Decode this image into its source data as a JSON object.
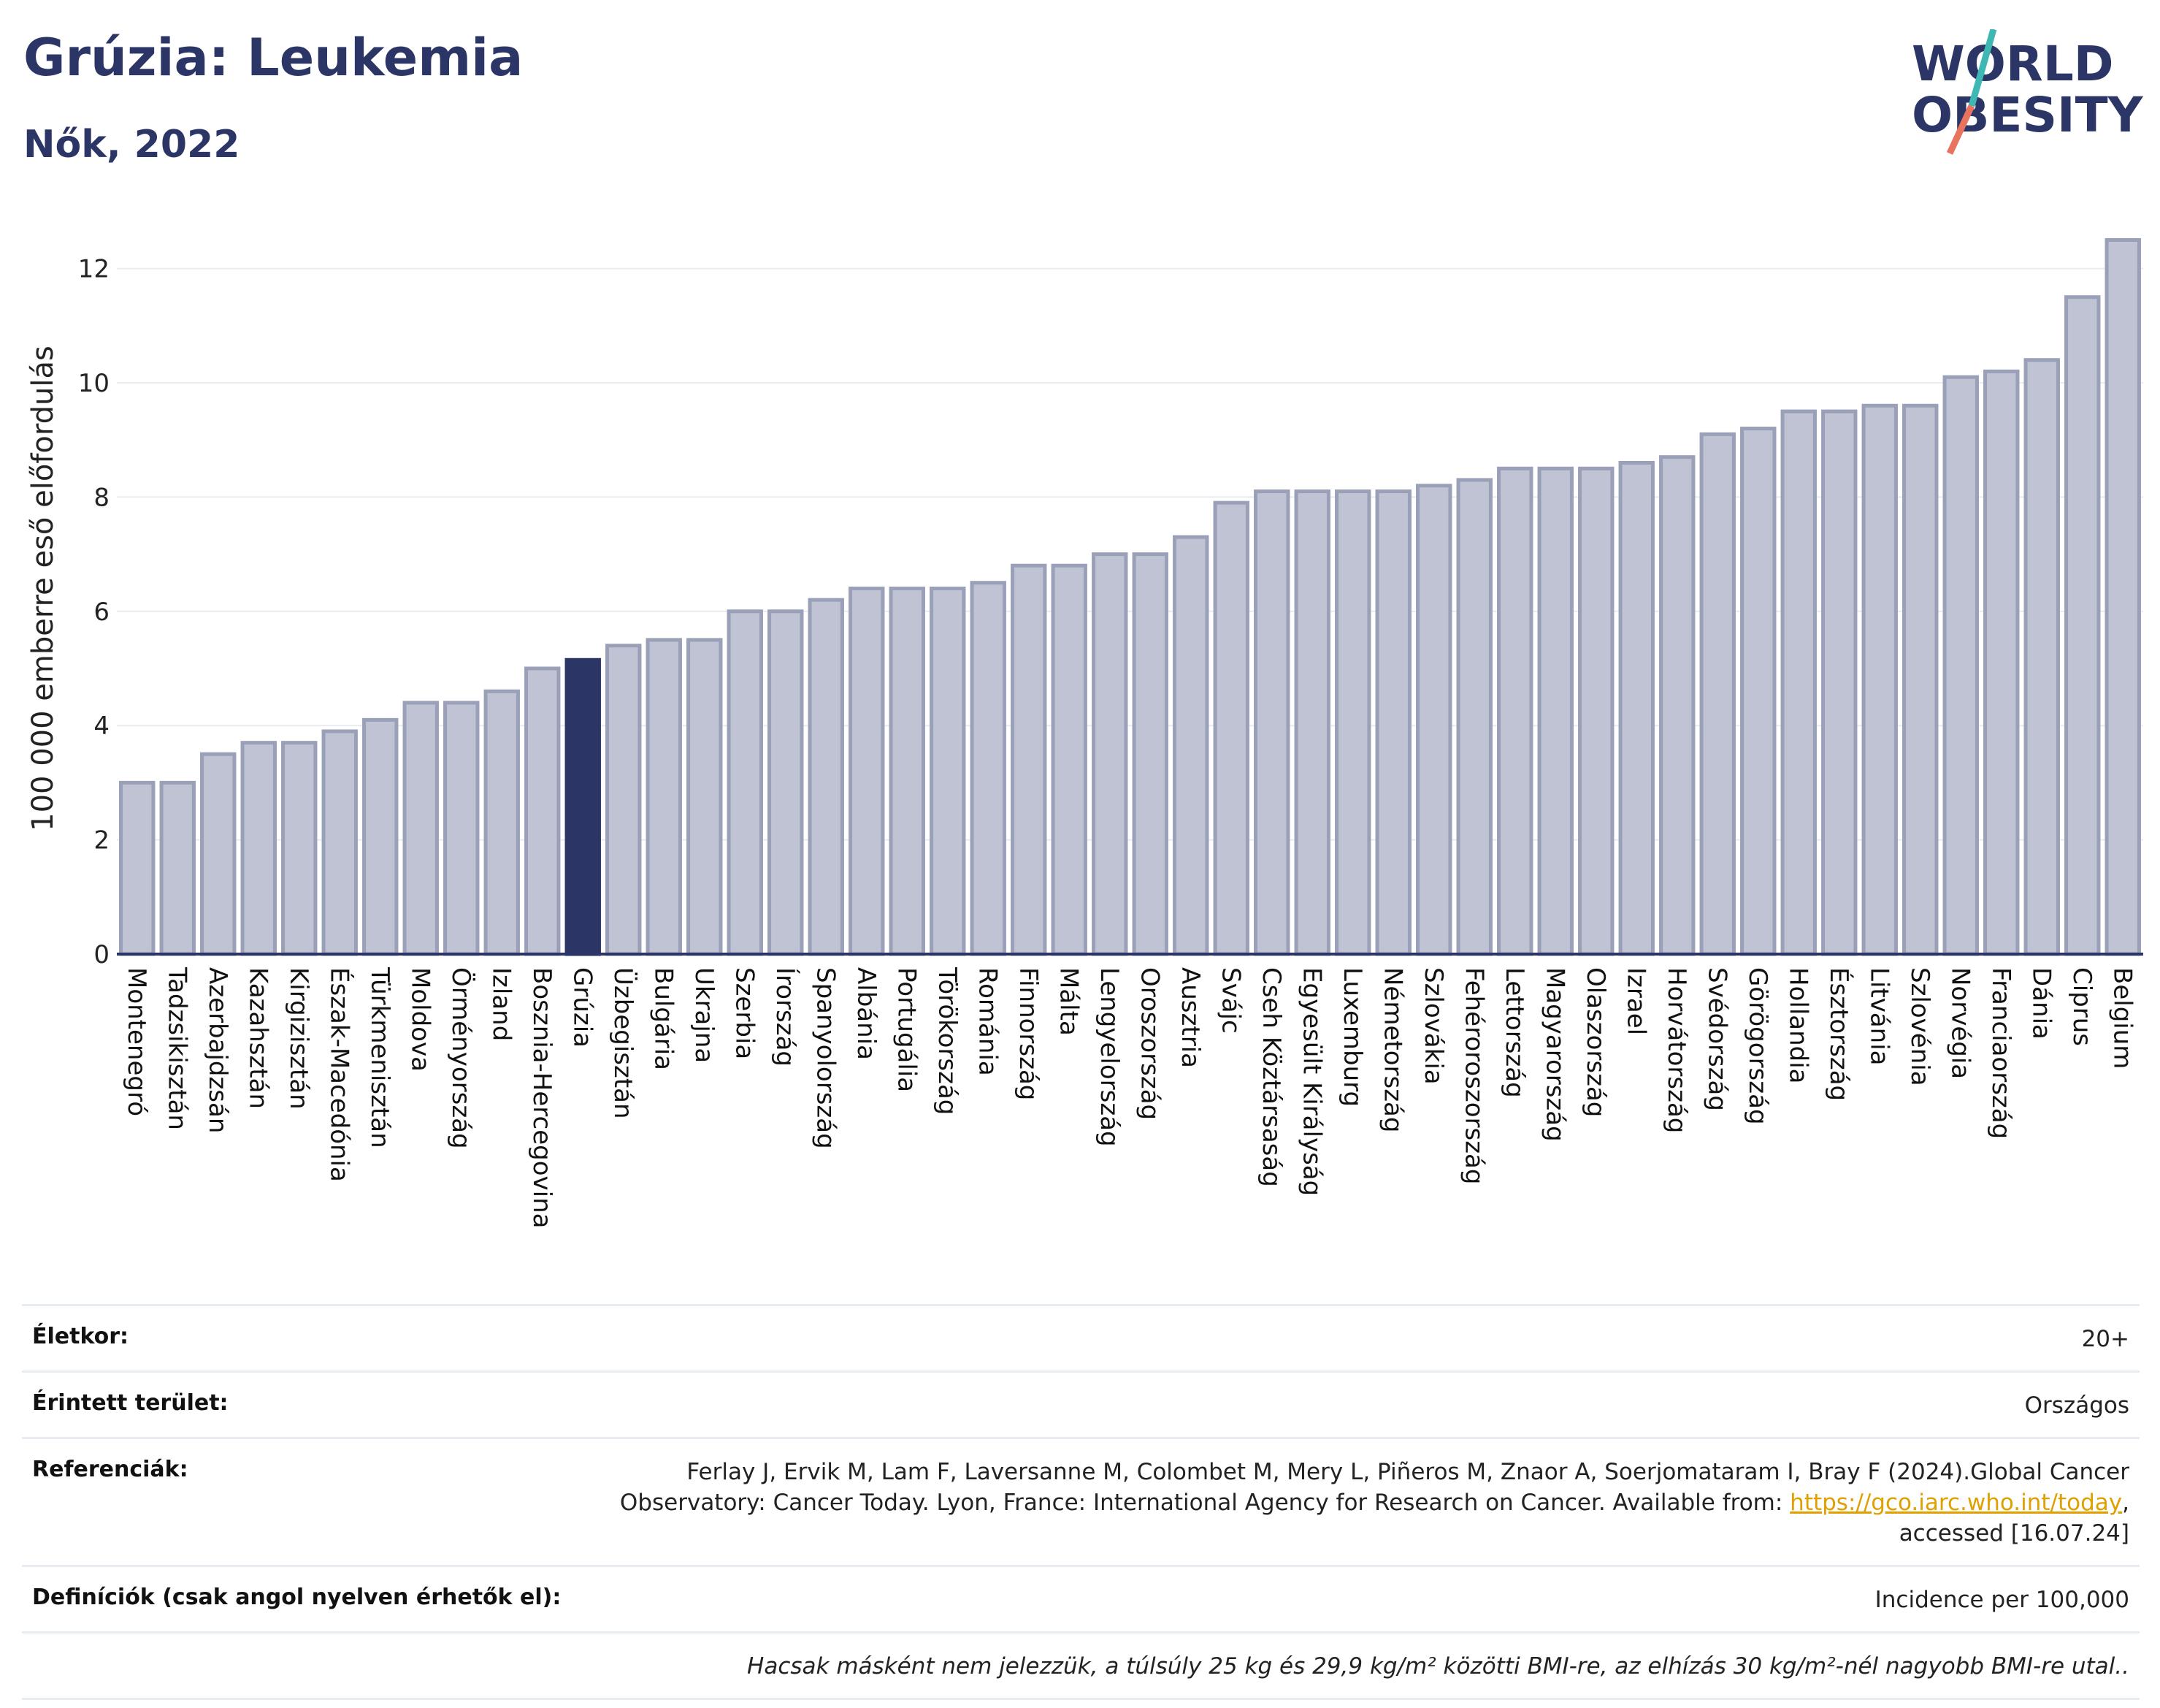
{
  "title": "Grúzia: Leukemia",
  "subtitle": "Nők, 2022",
  "logo": {
    "line1": "WORLD",
    "line2": "OBESITY",
    "name": "world-obesity-logo"
  },
  "colors": {
    "bar": "#bfc3d3",
    "bar_stroke": "#9aa0b8",
    "highlight": "#2b3566",
    "title": "#2b3566",
    "link": "#e0a100"
  },
  "chart_data": {
    "type": "bar",
    "ylabel": "100 000 emberre eső előfordulás",
    "ylim": [
      0,
      12.8
    ],
    "yticks": [
      0,
      2,
      4,
      6,
      8,
      10,
      12
    ],
    "grid": true,
    "highlight": "Grúzia",
    "categories": [
      "Montenegró",
      "Tadzsikisztán",
      "Azerbajdzsán",
      "Kazahsztán",
      "Kirgizisztán",
      "Észak-Macedónia",
      "Türkmenisztán",
      "Moldova",
      "Örményország",
      "Izland",
      "Bosznia-Hercegovina",
      "Grúzia",
      "Üzbegisztán",
      "Bulgária",
      "Ukrajna",
      "Szerbia",
      "Írország",
      "Spanyolország",
      "Albánia",
      "Portugália",
      "Törökország",
      "Románia",
      "Finnország",
      "Málta",
      "Lengyelország",
      "Oroszország",
      "Ausztria",
      "Svájc",
      "Cseh Köztársaság",
      "Egyesült Királyság",
      "Luxemburg",
      "Németország",
      "Szlovákia",
      "Fehéroroszország",
      "Lettország",
      "Magyarország",
      "Olaszország",
      "Izrael",
      "Horvátország",
      "Svédország",
      "Görögország",
      "Hollandia",
      "Észtország",
      "Litvánia",
      "Szlovénia",
      "Norvégia",
      "Franciaország",
      "Dánia",
      "Ciprus",
      "Belgium"
    ],
    "values": [
      3.0,
      3.0,
      3.5,
      3.7,
      3.7,
      3.9,
      4.1,
      4.4,
      4.4,
      4.6,
      5.0,
      5.15,
      5.4,
      5.5,
      5.5,
      6.0,
      6.0,
      6.2,
      6.4,
      6.4,
      6.4,
      6.5,
      6.8,
      6.8,
      7.0,
      7.0,
      7.3,
      7.9,
      8.1,
      8.1,
      8.1,
      8.1,
      8.2,
      8.3,
      8.5,
      8.5,
      8.5,
      8.6,
      8.7,
      9.1,
      9.2,
      9.5,
      9.5,
      9.6,
      9.6,
      10.1,
      10.2,
      10.4,
      11.5,
      12.5
    ]
  },
  "info": {
    "age_label": "Életkor:",
    "age_value": "20+",
    "area_label": "Érintett terület:",
    "area_value": "Országos",
    "ref_label": "Referenciák:",
    "ref_text_1": "Ferlay J, Ervik M, Lam F, Laversanne M, Colombet M, Mery L, Piñeros M, Znaor A, Soerjomataram I, Bray F (2024).Global Cancer Observatory: Cancer Today. Lyon, France: International Agency for Research on Cancer. Available from:",
    "ref_link": "https://gco.iarc.who.int/today",
    "ref_text_2": ", accessed [16.07.24]",
    "def_label": "Definíciók (csak angol nyelven érhetők el):",
    "def_value": "Incidence per 100,000",
    "note": "Hacsak másként nem jelezzük, a túlsúly 25 kg és 29,9 kg/m² közötti BMI-re, az elhízás 30 kg/m²-nél nagyobb BMI-re utal.."
  }
}
